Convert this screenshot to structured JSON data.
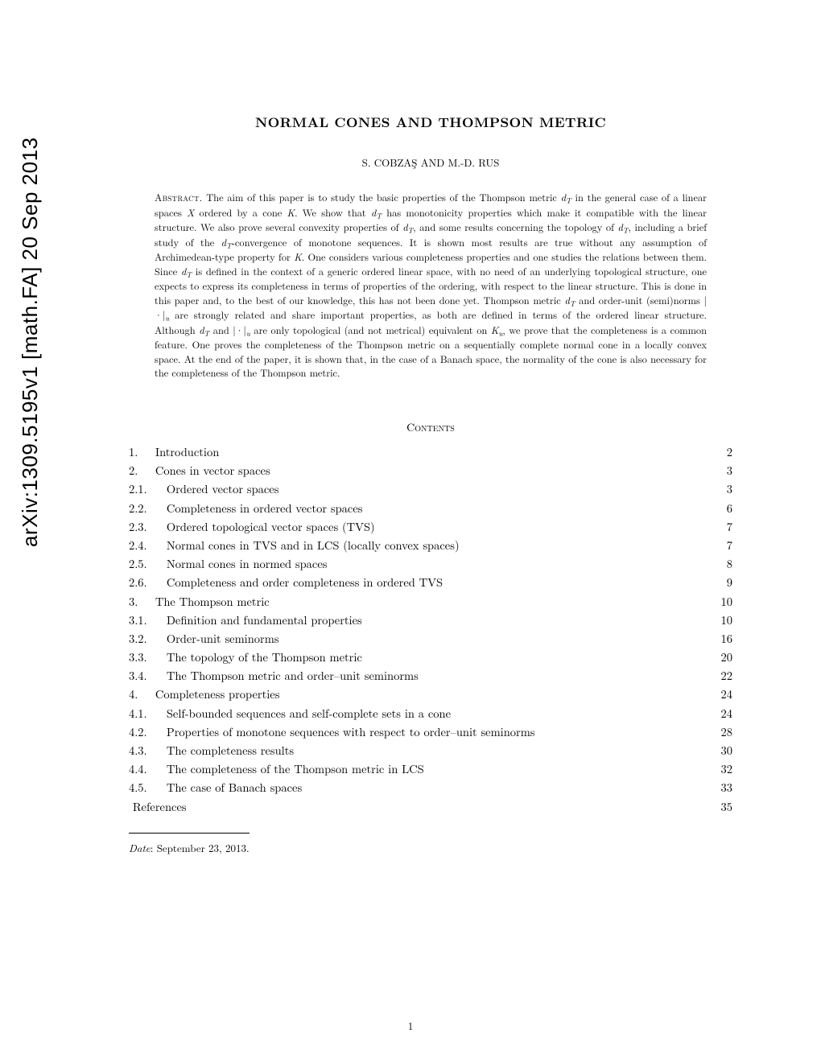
{
  "arxiv_stamp": "arXiv:1309.5195v1  [math.FA]  20 Sep 2013",
  "title": "NORMAL CONES AND THOMPSON METRIC",
  "authors": "S. COBZAŞ AND M.-D. RUS",
  "abstract_label": "Abstract.",
  "abstract_body": " The aim of this paper is to study the basic properties of the Thompson metric d_T in the general case of a linear spaces X ordered by a cone K. We show that d_T has monotonicity properties which make it compatible with the linear structure. We also prove several convexity properties of d_T, and some results concerning the topology of d_T, including a brief study of the d_T-convergence of monotone sequences. It is shown most results are true without any assumption of Archimedean-type property for K. One considers various completeness properties and one studies the relations between them. Since d_T is defined in the context of a generic ordered linear space, with no need of an underlying topological structure, one expects to express its completeness in terms of properties of the ordering, with respect to the linear structure. This is done in this paper and, to the best of our knowledge, this has not been done yet. Thompson metric d_T and order-unit (semi)norms |·|_u are strongly related and share important properties, as both are defined in terms of the ordered linear structure. Although d_T and |·|_u are only topological (and not metrical) equivalent on K_u, we prove that the completeness is a common feature. One proves the completeness of the Thompson metric on a sequentially complete normal cone in a locally convex space. At the end of the paper, it is shown that, in the case of a Banach space, the normality of the cone is also necessary for the completeness of the Thompson metric.",
  "contents_heading": "Contents",
  "toc": [
    {
      "level": "sec",
      "num": "1.",
      "title": "Introduction",
      "page": "2"
    },
    {
      "level": "sec",
      "num": "2.",
      "title": "Cones in vector spaces",
      "page": "3"
    },
    {
      "level": "sub",
      "num": "2.1.",
      "title": "Ordered vector spaces",
      "page": "3"
    },
    {
      "level": "sub",
      "num": "2.2.",
      "title": "Completeness in ordered vector spaces",
      "page": "6"
    },
    {
      "level": "sub",
      "num": "2.3.",
      "title": "Ordered topological vector spaces (TVS)",
      "page": "7"
    },
    {
      "level": "sub",
      "num": "2.4.",
      "title": "Normal cones in TVS and in LCS (locally convex spaces)",
      "page": "7"
    },
    {
      "level": "sub",
      "num": "2.5.",
      "title": "Normal cones in normed spaces",
      "page": "8"
    },
    {
      "level": "sub",
      "num": "2.6.",
      "title": "Completeness and order completeness in ordered TVS",
      "page": "9"
    },
    {
      "level": "sec",
      "num": "3.",
      "title": "The Thompson metric",
      "page": "10"
    },
    {
      "level": "sub",
      "num": "3.1.",
      "title": "Definition and fundamental properties",
      "page": "10"
    },
    {
      "level": "sub",
      "num": "3.2.",
      "title": "Order-unit seminorms",
      "page": "16"
    },
    {
      "level": "sub",
      "num": "3.3.",
      "title": "The topology of the Thompson metric",
      "page": "20"
    },
    {
      "level": "sub",
      "num": "3.4.",
      "title": "The Thompson metric and order–unit seminorms",
      "page": "22"
    },
    {
      "level": "sec",
      "num": "4.",
      "title": "Completeness properties",
      "page": "24"
    },
    {
      "level": "sub",
      "num": "4.1.",
      "title": "Self-bounded sequences and self-complete sets in a cone",
      "page": "24"
    },
    {
      "level": "sub",
      "num": "4.2.",
      "title": "Properties of monotone sequences with respect to order–unit seminorms",
      "page": "28"
    },
    {
      "level": "sub",
      "num": "4.3.",
      "title": "The completeness results",
      "page": "30"
    },
    {
      "level": "sub",
      "num": "4.4.",
      "title": "The completeness of the Thompson metric in LCS",
      "page": "32"
    },
    {
      "level": "sub",
      "num": "4.5.",
      "title": "The case of Banach spaces",
      "page": "33"
    },
    {
      "level": "ref",
      "num": "",
      "title": "References",
      "page": "35"
    }
  ],
  "date_label": "Date",
  "date_value": ": September 23, 2013.",
  "page_number": "1",
  "colors": {
    "background": "#ffffff",
    "text": "#000000"
  }
}
